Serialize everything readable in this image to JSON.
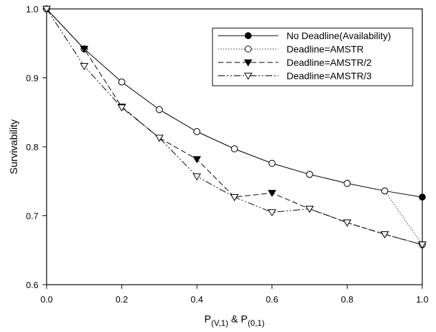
{
  "chart_data": {
    "type": "line",
    "xlabel": {
      "main": "P",
      "sub1": "(V,1)",
      "mid": " & P",
      "sub2": "(0,1)"
    },
    "ylabel": "Survivability",
    "xlim": [
      0,
      1
    ],
    "ylim": [
      0.6,
      1.0
    ],
    "x_ticks": [
      "0.0",
      "0.2",
      "0.4",
      "0.6",
      "0.8",
      "1.0"
    ],
    "y_ticks": [
      "0.6",
      "0.7",
      "0.8",
      "0.9",
      "1.0"
    ],
    "grid": false,
    "legend_position": "top-right",
    "series": [
      {
        "name": "No Deadline(Availability)",
        "line": "solid",
        "marker": "filled-circle",
        "x": [
          0.0,
          0.1,
          0.2,
          0.3,
          0.4,
          0.5,
          0.6,
          0.7,
          0.8,
          0.9,
          1.0
        ],
        "y": [
          1.0,
          0.942,
          0.894,
          0.854,
          0.822,
          0.797,
          0.776,
          0.76,
          0.747,
          0.736,
          0.727
        ]
      },
      {
        "name": "Deadline=AMSTR",
        "line": "dotted",
        "marker": "open-circle",
        "x": [
          0.0,
          0.1,
          0.2,
          0.3,
          0.4,
          0.5,
          0.6,
          0.7,
          0.8,
          0.9,
          1.0
        ],
        "y": [
          1.0,
          0.942,
          0.894,
          0.854,
          0.822,
          0.797,
          0.776,
          0.76,
          0.747,
          0.736,
          0.658
        ]
      },
      {
        "name": "Deadline=AMSTR/2",
        "line": "dashed",
        "marker": "filled-triangle-down",
        "x": [
          0.0,
          0.1,
          0.2,
          0.3,
          0.4,
          0.5,
          0.6,
          0.7,
          0.8,
          0.9,
          1.0
        ],
        "y": [
          1.0,
          0.942,
          0.858,
          0.813,
          0.782,
          0.727,
          0.733,
          0.71,
          0.69,
          0.673,
          0.658
        ]
      },
      {
        "name": "Deadline=AMSTR/3",
        "line": "dash-dot-dot",
        "marker": "open-triangle-down",
        "x": [
          0.0,
          0.1,
          0.2,
          0.3,
          0.4,
          0.5,
          0.6,
          0.7,
          0.8,
          0.9,
          1.0
        ],
        "y": [
          1.0,
          0.917,
          0.857,
          0.813,
          0.757,
          0.727,
          0.705,
          0.71,
          0.69,
          0.673,
          0.658
        ]
      }
    ]
  }
}
